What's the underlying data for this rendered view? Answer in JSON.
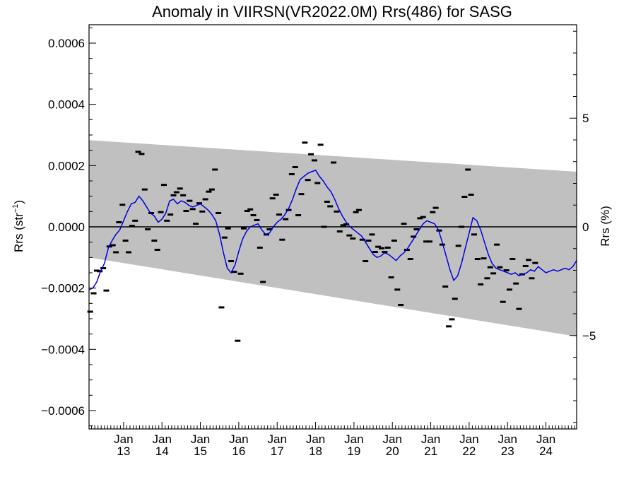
{
  "chart_data": {
    "type": "scatter",
    "title": "Anomaly in VIIRSN(VR2022.0M) Rrs(486) for SASG",
    "ylabel_left_main": "Rrs (str",
    "ylabel_left_sup": "−1",
    "ylabel_left_end": ")",
    "ylabel_right": "Rrs (%)",
    "xlim": [
      2012.1,
      2024.8
    ],
    "ylim": [
      -0.00066,
      0.00066
    ],
    "ylim_right": [
      -9.3,
      9.3
    ],
    "left_ticks": [
      {
        "value": 0.0006,
        "label": "0.0006"
      },
      {
        "value": 0.0004,
        "label": "0.0004"
      },
      {
        "value": 0.0002,
        "label": "0.0002"
      },
      {
        "value": 0.0,
        "label": "0.0000"
      },
      {
        "value": -0.0002,
        "label": "−0.0002"
      },
      {
        "value": -0.0004,
        "label": "−0.0004"
      },
      {
        "value": -0.0006,
        "label": "−0.0006"
      }
    ],
    "right_ticks": [
      {
        "value": 5,
        "label": "5"
      },
      {
        "value": 0,
        "label": "0"
      },
      {
        "value": -5,
        "label": "−5"
      }
    ],
    "x_ticks": [
      {
        "value": 2013,
        "month": "Jan",
        "year": "13"
      },
      {
        "value": 2014,
        "month": "Jan",
        "year": "14"
      },
      {
        "value": 2015,
        "month": "Jan",
        "year": "15"
      },
      {
        "value": 2016,
        "month": "Jan",
        "year": "16"
      },
      {
        "value": 2017,
        "month": "Jan",
        "year": "17"
      },
      {
        "value": 2018,
        "month": "Jan",
        "year": "18"
      },
      {
        "value": 2019,
        "month": "Jan",
        "year": "19"
      },
      {
        "value": 2020,
        "month": "Jan",
        "year": "20"
      },
      {
        "value": 2021,
        "month": "Jan",
        "year": "21"
      },
      {
        "value": 2022,
        "month": "Jan",
        "year": "22"
      },
      {
        "value": 2023,
        "month": "Jan",
        "year": "23"
      },
      {
        "value": 2024,
        "month": "Jan",
        "year": "24"
      }
    ],
    "band": {
      "upper": [
        [
          2012.1,
          0.000283
        ],
        [
          2024.8,
          0.00018
        ]
      ],
      "lower": [
        [
          2012.1,
          -0.0001
        ],
        [
          2024.8,
          -0.000358
        ]
      ],
      "color": "#c0c0c0"
    },
    "zero_line": true,
    "points": [
      [
        2012.13,
        -0.000277
      ],
      [
        2012.22,
        -0.000217
      ],
      [
        2012.3,
        -0.000143
      ],
      [
        2012.38,
        -0.000145
      ],
      [
        2012.47,
        -0.000135
      ],
      [
        2012.55,
        -0.000208
      ],
      [
        2012.63,
        -6.4e-05
      ],
      [
        2012.72,
        -6e-05
      ],
      [
        2012.8,
        -8.3e-05
      ],
      [
        2012.88,
        1.5e-05
      ],
      [
        2012.97,
        7.2e-05
      ],
      [
        2013.05,
        -4.5e-05
      ],
      [
        2013.13,
        -8.3e-05
      ],
      [
        2013.22,
        3e-06
      ],
      [
        2013.3,
        2e-05
      ],
      [
        2013.38,
        0.000245
      ],
      [
        2013.47,
        0.000238
      ],
      [
        2013.55,
        0.000122
      ],
      [
        2013.63,
        -8e-06
      ],
      [
        2013.72,
        4.5e-05
      ],
      [
        2013.8,
        -4.5e-05
      ],
      [
        2013.88,
        -7.5e-05
      ],
      [
        2013.97,
        4.8e-05
      ],
      [
        2014.05,
        0.000137
      ],
      [
        2014.13,
        2e-05
      ],
      [
        2014.22,
        4e-05
      ],
      [
        2014.3,
        0.000103
      ],
      [
        2014.38,
        0.000113
      ],
      [
        2014.47,
        0.000125
      ],
      [
        2014.55,
        0.000103
      ],
      [
        2014.63,
        5.2e-05
      ],
      [
        2014.72,
        8.5e-05
      ],
      [
        2014.8,
        5.8e-05
      ],
      [
        2014.88,
        1e-05
      ],
      [
        2014.97,
        7.7e-05
      ],
      [
        2015.05,
        5e-05
      ],
      [
        2015.13,
        9e-05
      ],
      [
        2015.22,
        0.000115
      ],
      [
        2015.3,
        0.000122
      ],
      [
        2015.38,
        0.000187
      ],
      [
        2015.47,
        4.5e-05
      ],
      [
        2015.55,
        -0.000263
      ],
      [
        2015.63,
        -3.5e-05
      ],
      [
        2015.72,
        -5e-06
      ],
      [
        2015.8,
        -0.000112
      ],
      [
        2015.88,
        -0.000147
      ],
      [
        2015.97,
        -0.000372
      ],
      [
        2016.05,
        -0.000153
      ],
      [
        2016.13,
        -5e-06
      ],
      [
        2016.22,
        5.2e-05
      ],
      [
        2016.3,
        5.7e-05
      ],
      [
        2016.38,
        3.8e-05
      ],
      [
        2016.47,
        2.2e-05
      ],
      [
        2016.55,
        -6.8e-05
      ],
      [
        2016.63,
        -0.00018
      ],
      [
        2016.72,
        -2.5e-05
      ],
      [
        2016.8,
        -8e-06
      ],
      [
        2016.88,
        9.3e-05
      ],
      [
        2016.97,
        0.000105
      ],
      [
        2017.05,
        4e-05
      ],
      [
        2017.13,
        -4.2e-05
      ],
      [
        2017.22,
        2.5e-05
      ],
      [
        2017.3,
        5.5e-05
      ],
      [
        2017.38,
        0.000172
      ],
      [
        2017.47,
        0.000195
      ],
      [
        2017.55,
        3.8e-05
      ],
      [
        2017.63,
        0.000107
      ],
      [
        2017.72,
        0.000275
      ],
      [
        2017.8,
        0.000153
      ],
      [
        2017.88,
        0.000237
      ],
      [
        2017.97,
        0.000217
      ],
      [
        2018.05,
        0.000143
      ],
      [
        2018.13,
        0.000268
      ],
      [
        2018.22,
        0.0
      ],
      [
        2018.3,
        8.2e-05
      ],
      [
        2018.38,
        6.7e-05
      ],
      [
        2018.47,
        0.00021
      ],
      [
        2018.55,
        5e-05
      ],
      [
        2018.63,
        -1.5e-05
      ],
      [
        2018.72,
        5e-06
      ],
      [
        2018.8,
        8e-06
      ],
      [
        2018.88,
        -2.8e-05
      ],
      [
        2018.97,
        -3.8e-05
      ],
      [
        2019.05,
        4.8e-05
      ],
      [
        2019.13,
        5.5e-05
      ],
      [
        2019.22,
        -4.2e-05
      ],
      [
        2019.3,
        -0.000112
      ],
      [
        2019.38,
        -4.5e-05
      ],
      [
        2019.47,
        -2.5e-05
      ],
      [
        2019.55,
        -8.2e-05
      ],
      [
        2019.63,
        -6.5e-05
      ],
      [
        2019.72,
        -7e-05
      ],
      [
        2019.8,
        -8.2e-05
      ],
      [
        2019.88,
        -6.8e-05
      ],
      [
        2019.97,
        -0.000165
      ],
      [
        2020.05,
        -4.5e-05
      ],
      [
        2020.13,
        -0.000205
      ],
      [
        2020.22,
        -0.000255
      ],
      [
        2020.3,
        1e-05
      ],
      [
        2020.38,
        -7.5e-05
      ],
      [
        2020.47,
        -0.000105
      ],
      [
        2020.55,
        -3.2e-05
      ],
      [
        2020.63,
        -8e-06
      ],
      [
        2020.72,
        2.8e-05
      ],
      [
        2020.8,
        3.2e-05
      ],
      [
        2020.88,
        -4.8e-05
      ],
      [
        2020.97,
        -4.8e-05
      ],
      [
        2021.05,
        4.8e-05
      ],
      [
        2021.13,
        6.2e-05
      ],
      [
        2021.22,
        -1.2e-05
      ],
      [
        2021.3,
        -5.8e-05
      ],
      [
        2021.38,
        -0.000195
      ],
      [
        2021.47,
        -0.000325
      ],
      [
        2021.55,
        -0.000302
      ],
      [
        2021.63,
        -0.000235
      ],
      [
        2021.72,
        -6.2e-05
      ],
      [
        2021.8,
        0.0
      ],
      [
        2021.88,
        9.8e-05
      ],
      [
        2021.97,
        0.000187
      ],
      [
        2022.05,
        0.000105
      ],
      [
        2022.13,
        -2.5e-05
      ],
      [
        2022.22,
        -0.000105
      ],
      [
        2022.3,
        -0.000188
      ],
      [
        2022.38,
        -0.000103
      ],
      [
        2022.47,
        -0.000168
      ],
      [
        2022.55,
        -0.000132
      ],
      [
        2022.63,
        -0.000152
      ],
      [
        2022.72,
        -5.8e-05
      ],
      [
        2022.8,
        -0.000132
      ],
      [
        2022.88,
        -0.000245
      ],
      [
        2022.97,
        -0.000142
      ],
      [
        2023.05,
        -0.000205
      ],
      [
        2023.13,
        -0.000105
      ],
      [
        2023.22,
        -0.000185
      ],
      [
        2023.3,
        -0.000268
      ],
      [
        2023.38,
        -0.000155
      ],
      [
        2023.47,
        -0.000128
      ],
      [
        2023.55,
        -0.000108
      ],
      [
        2023.63,
        -0.000168
      ],
      [
        2023.72,
        -0.000118
      ]
    ],
    "smooth_line": [
      [
        2012.1,
        -0.000205
      ],
      [
        2012.2,
        -0.0002
      ],
      [
        2012.3,
        -0.00018
      ],
      [
        2012.4,
        -0.000145
      ],
      [
        2012.5,
        -0.00012
      ],
      [
        2012.6,
        -7e-05
      ],
      [
        2012.7,
        -4.5e-05
      ],
      [
        2012.8,
        -2.5e-05
      ],
      [
        2012.9,
        -1e-05
      ],
      [
        2013.0,
        2e-05
      ],
      [
        2013.1,
        5e-05
      ],
      [
        2013.2,
        7.5e-05
      ],
      [
        2013.3,
        8e-05
      ],
      [
        2013.4,
        0.0001
      ],
      [
        2013.5,
        8.5e-05
      ],
      [
        2013.6,
        6.5e-05
      ],
      [
        2013.7,
        4.5e-05
      ],
      [
        2013.8,
        3.5e-05
      ],
      [
        2013.9,
        1.5e-05
      ],
      [
        2014.0,
        2.5e-05
      ],
      [
        2014.1,
        4.5e-05
      ],
      [
        2014.2,
        8.5e-05
      ],
      [
        2014.3,
        9e-05
      ],
      [
        2014.4,
        7.5e-05
      ],
      [
        2014.5,
        8.5e-05
      ],
      [
        2014.6,
        8e-05
      ],
      [
        2014.7,
        7e-05
      ],
      [
        2014.8,
        6.5e-05
      ],
      [
        2014.9,
        7e-05
      ],
      [
        2015.0,
        7.5e-05
      ],
      [
        2015.1,
        6.5e-05
      ],
      [
        2015.2,
        5.5e-05
      ],
      [
        2015.3,
        4e-05
      ],
      [
        2015.4,
        2e-05
      ],
      [
        2015.5,
        -2.5e-05
      ],
      [
        2015.6,
        -8.5e-05
      ],
      [
        2015.7,
        -0.000135
      ],
      [
        2015.8,
        -0.00015
      ],
      [
        2015.9,
        -0.000125
      ],
      [
        2016.0,
        -8e-05
      ],
      [
        2016.1,
        -4e-05
      ],
      [
        2016.2,
        -1.5e-05
      ],
      [
        2016.3,
        0.0
      ],
      [
        2016.4,
        5e-06
      ],
      [
        2016.5,
        1e-05
      ],
      [
        2016.6,
        -1e-05
      ],
      [
        2016.7,
        -2.5e-05
      ],
      [
        2016.8,
        -2e-05
      ],
      [
        2016.9,
        0.0
      ],
      [
        2017.0,
        1.5e-05
      ],
      [
        2017.1,
        2.5e-05
      ],
      [
        2017.2,
        4e-05
      ],
      [
        2017.3,
        6e-05
      ],
      [
        2017.4,
        9e-05
      ],
      [
        2017.5,
        0.000125
      ],
      [
        2017.6,
        0.000155
      ],
      [
        2017.7,
        0.000165
      ],
      [
        2017.8,
        0.000175
      ],
      [
        2017.9,
        0.00018
      ],
      [
        2018.0,
        0.000185
      ],
      [
        2018.1,
        0.000165
      ],
      [
        2018.2,
        0.00015
      ],
      [
        2018.3,
        0.00013
      ],
      [
        2018.4,
        0.000115
      ],
      [
        2018.5,
        9e-05
      ],
      [
        2018.6,
        6e-05
      ],
      [
        2018.7,
        3.5e-05
      ],
      [
        2018.8,
        1.5e-05
      ],
      [
        2018.9,
        0.0
      ],
      [
        2019.0,
        -1e-05
      ],
      [
        2019.1,
        -2e-05
      ],
      [
        2019.2,
        -3e-05
      ],
      [
        2019.3,
        -5e-05
      ],
      [
        2019.4,
        -7e-05
      ],
      [
        2019.5,
        -9e-05
      ],
      [
        2019.6,
        -0.0001
      ],
      [
        2019.7,
        -9.5e-05
      ],
      [
        2019.8,
        -8.5e-05
      ],
      [
        2019.9,
        -9e-05
      ],
      [
        2020.0,
        -0.0001
      ],
      [
        2020.1,
        -0.00011
      ],
      [
        2020.2,
        -9.5e-05
      ],
      [
        2020.3,
        -8.5e-05
      ],
      [
        2020.4,
        -7e-05
      ],
      [
        2020.5,
        -5e-05
      ],
      [
        2020.6,
        -3e-05
      ],
      [
        2020.7,
        -1e-05
      ],
      [
        2020.8,
        1e-05
      ],
      [
        2020.9,
        2e-05
      ],
      [
        2021.0,
        1.5e-05
      ],
      [
        2021.1,
        1e-05
      ],
      [
        2021.2,
        -1e-05
      ],
      [
        2021.3,
        -5e-05
      ],
      [
        2021.4,
        -9.5e-05
      ],
      [
        2021.5,
        -0.00014
      ],
      [
        2021.6,
        -0.000175
      ],
      [
        2021.7,
        -0.00016
      ],
      [
        2021.8,
        -0.00012
      ],
      [
        2021.9,
        -7e-05
      ],
      [
        2022.0,
        -2e-05
      ],
      [
        2022.1,
        3e-05
      ],
      [
        2022.2,
        2e-05
      ],
      [
        2022.3,
        -1e-05
      ],
      [
        2022.4,
        -5e-05
      ],
      [
        2022.5,
        -9e-05
      ],
      [
        2022.6,
        -0.00012
      ],
      [
        2022.7,
        -0.000135
      ],
      [
        2022.8,
        -0.00014
      ],
      [
        2022.9,
        -0.000145
      ],
      [
        2023.0,
        -0.00015
      ],
      [
        2023.1,
        -0.000155
      ],
      [
        2023.2,
        -0.00015
      ],
      [
        2023.3,
        -0.00016
      ],
      [
        2023.4,
        -0.000155
      ],
      [
        2023.5,
        -0.00015
      ],
      [
        2023.6,
        -0.00014
      ],
      [
        2023.7,
        -0.000145
      ],
      [
        2023.8,
        -0.00013
      ],
      [
        2023.9,
        -0.00014
      ],
      [
        2024.0,
        -0.00015
      ],
      [
        2024.1,
        -0.000145
      ],
      [
        2024.2,
        -0.00014
      ],
      [
        2024.3,
        -0.000145
      ],
      [
        2024.4,
        -0.00014
      ],
      [
        2024.5,
        -0.000135
      ],
      [
        2024.6,
        -0.00014
      ],
      [
        2024.7,
        -0.00013
      ],
      [
        2024.8,
        -0.00011
      ]
    ],
    "smooth_line_color": "#0000dd",
    "point_color": "#000000"
  }
}
